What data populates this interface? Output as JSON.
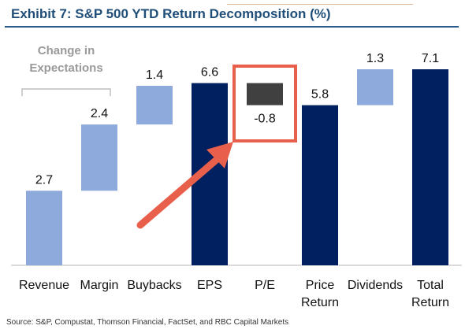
{
  "title": "Exhibit 7: S&P 500 YTD Return Decomposition (%)",
  "source": "Source: S&P, Compustat, Thomson Financial, FactSet, and RBC Capital Markets",
  "colors": {
    "light": "#8ea9db",
    "dark": "#002060",
    "negative": "#404040",
    "highlight": "#e8604c",
    "title": "#1f4e79"
  },
  "chart_data": {
    "type": "bar",
    "subtype": "waterfall",
    "categories": [
      "Revenue",
      "Margin",
      "Buybacks",
      "EPS",
      "P/E",
      "Price Return",
      "Dividends",
      "Total Return"
    ],
    "category_lines": [
      [
        "Revenue"
      ],
      [
        "Margin"
      ],
      [
        "Buybacks"
      ],
      [
        "EPS"
      ],
      [
        "P/E"
      ],
      [
        "Price",
        "Return"
      ],
      [
        "Dividends"
      ],
      [
        "Total",
        "Return"
      ]
    ],
    "values": [
      2.7,
      2.4,
      1.4,
      6.6,
      -0.8,
      5.8,
      1.3,
      7.1
    ],
    "value_labels": [
      "2.7",
      "2.4",
      "1.4",
      "6.6",
      "-0.8",
      "5.8",
      "1.3",
      "7.1"
    ],
    "bar_kinds": [
      "step",
      "step",
      "step",
      "total",
      "step",
      "total",
      "step",
      "total"
    ],
    "ylim": [
      0,
      7.1
    ],
    "annotation": {
      "lines": [
        "Change in",
        "Expectations"
      ],
      "spans": [
        "Revenue",
        "Margin"
      ]
    },
    "highlight": "P/E",
    "grid": false,
    "legend": "none"
  }
}
